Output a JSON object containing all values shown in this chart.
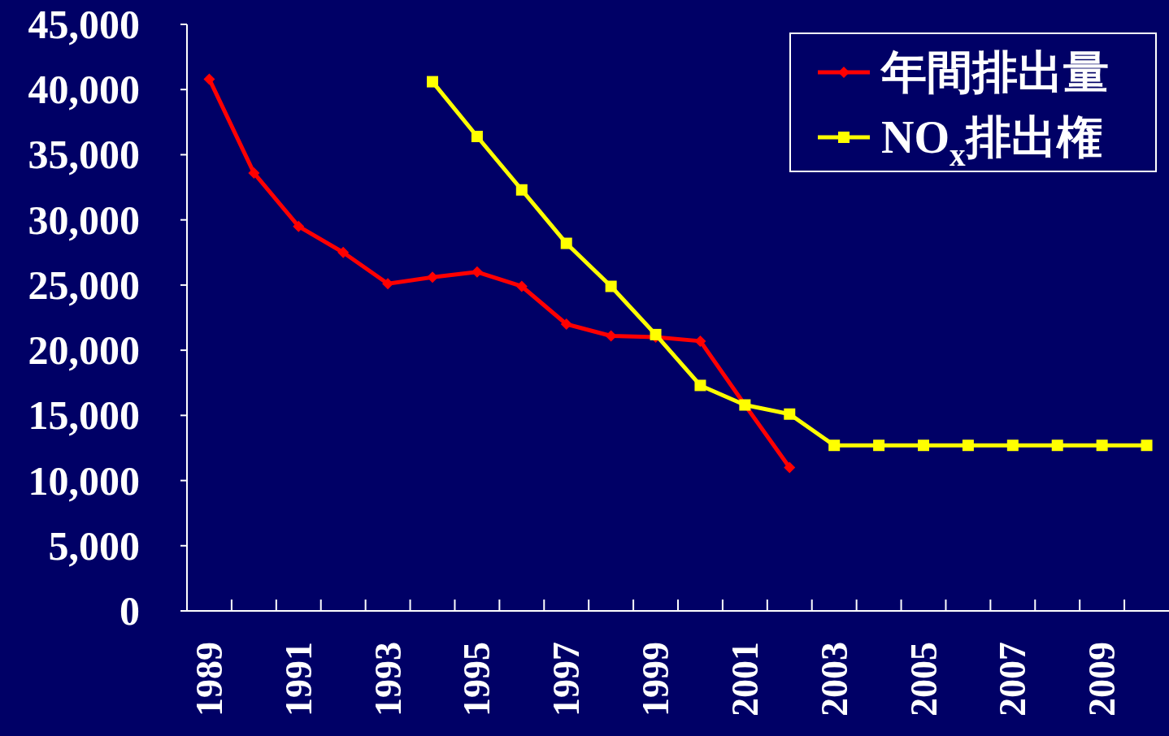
{
  "chart_data": {
    "type": "line",
    "categories": [
      "1989",
      null,
      "1991",
      null,
      "1993",
      null,
      "1995",
      null,
      "1997",
      null,
      "1999",
      null,
      "2001",
      null,
      "2003",
      null,
      "2005",
      null,
      "2007",
      null,
      "2009",
      null
    ],
    "series": [
      {
        "name": "年間排出量",
        "color": "#ff0000",
        "marker": "diamond",
        "values": [
          40800,
          33600,
          29500,
          27500,
          25100,
          25600,
          26000,
          24900,
          22000,
          21100,
          21000,
          20700,
          15800,
          11000,
          null,
          null,
          null,
          null,
          null,
          null,
          null,
          null
        ]
      },
      {
        "name": "NO$_{x}$排出権",
        "color": "#ffff00",
        "marker": "square",
        "values": [
          null,
          null,
          null,
          null,
          null,
          40600,
          36400,
          32300,
          28200,
          24900,
          21200,
          17300,
          15800,
          15100,
          12700,
          12700,
          12700,
          12700,
          12700,
          12700,
          12700,
          12700
        ]
      }
    ],
    "ylim": [
      0,
      45000
    ],
    "yticks": [
      0,
      {
        "value": 5000,
        "label": "5,000"
      },
      {
        "value": 10000,
        "label": "10,000"
      },
      {
        "value": 15000,
        "label": "15,000"
      },
      {
        "value": 20000,
        "label": "20,000"
      },
      {
        "value": 25000,
        "label": "25,000"
      },
      {
        "value": 30000,
        "label": "30,000"
      },
      {
        "value": 35000,
        "label": "35,000"
      },
      {
        "value": 40000,
        "label": "40,000"
      },
      {
        "value": 45000,
        "label": "45,000"
      }
    ],
    "legend": "top right"
  }
}
